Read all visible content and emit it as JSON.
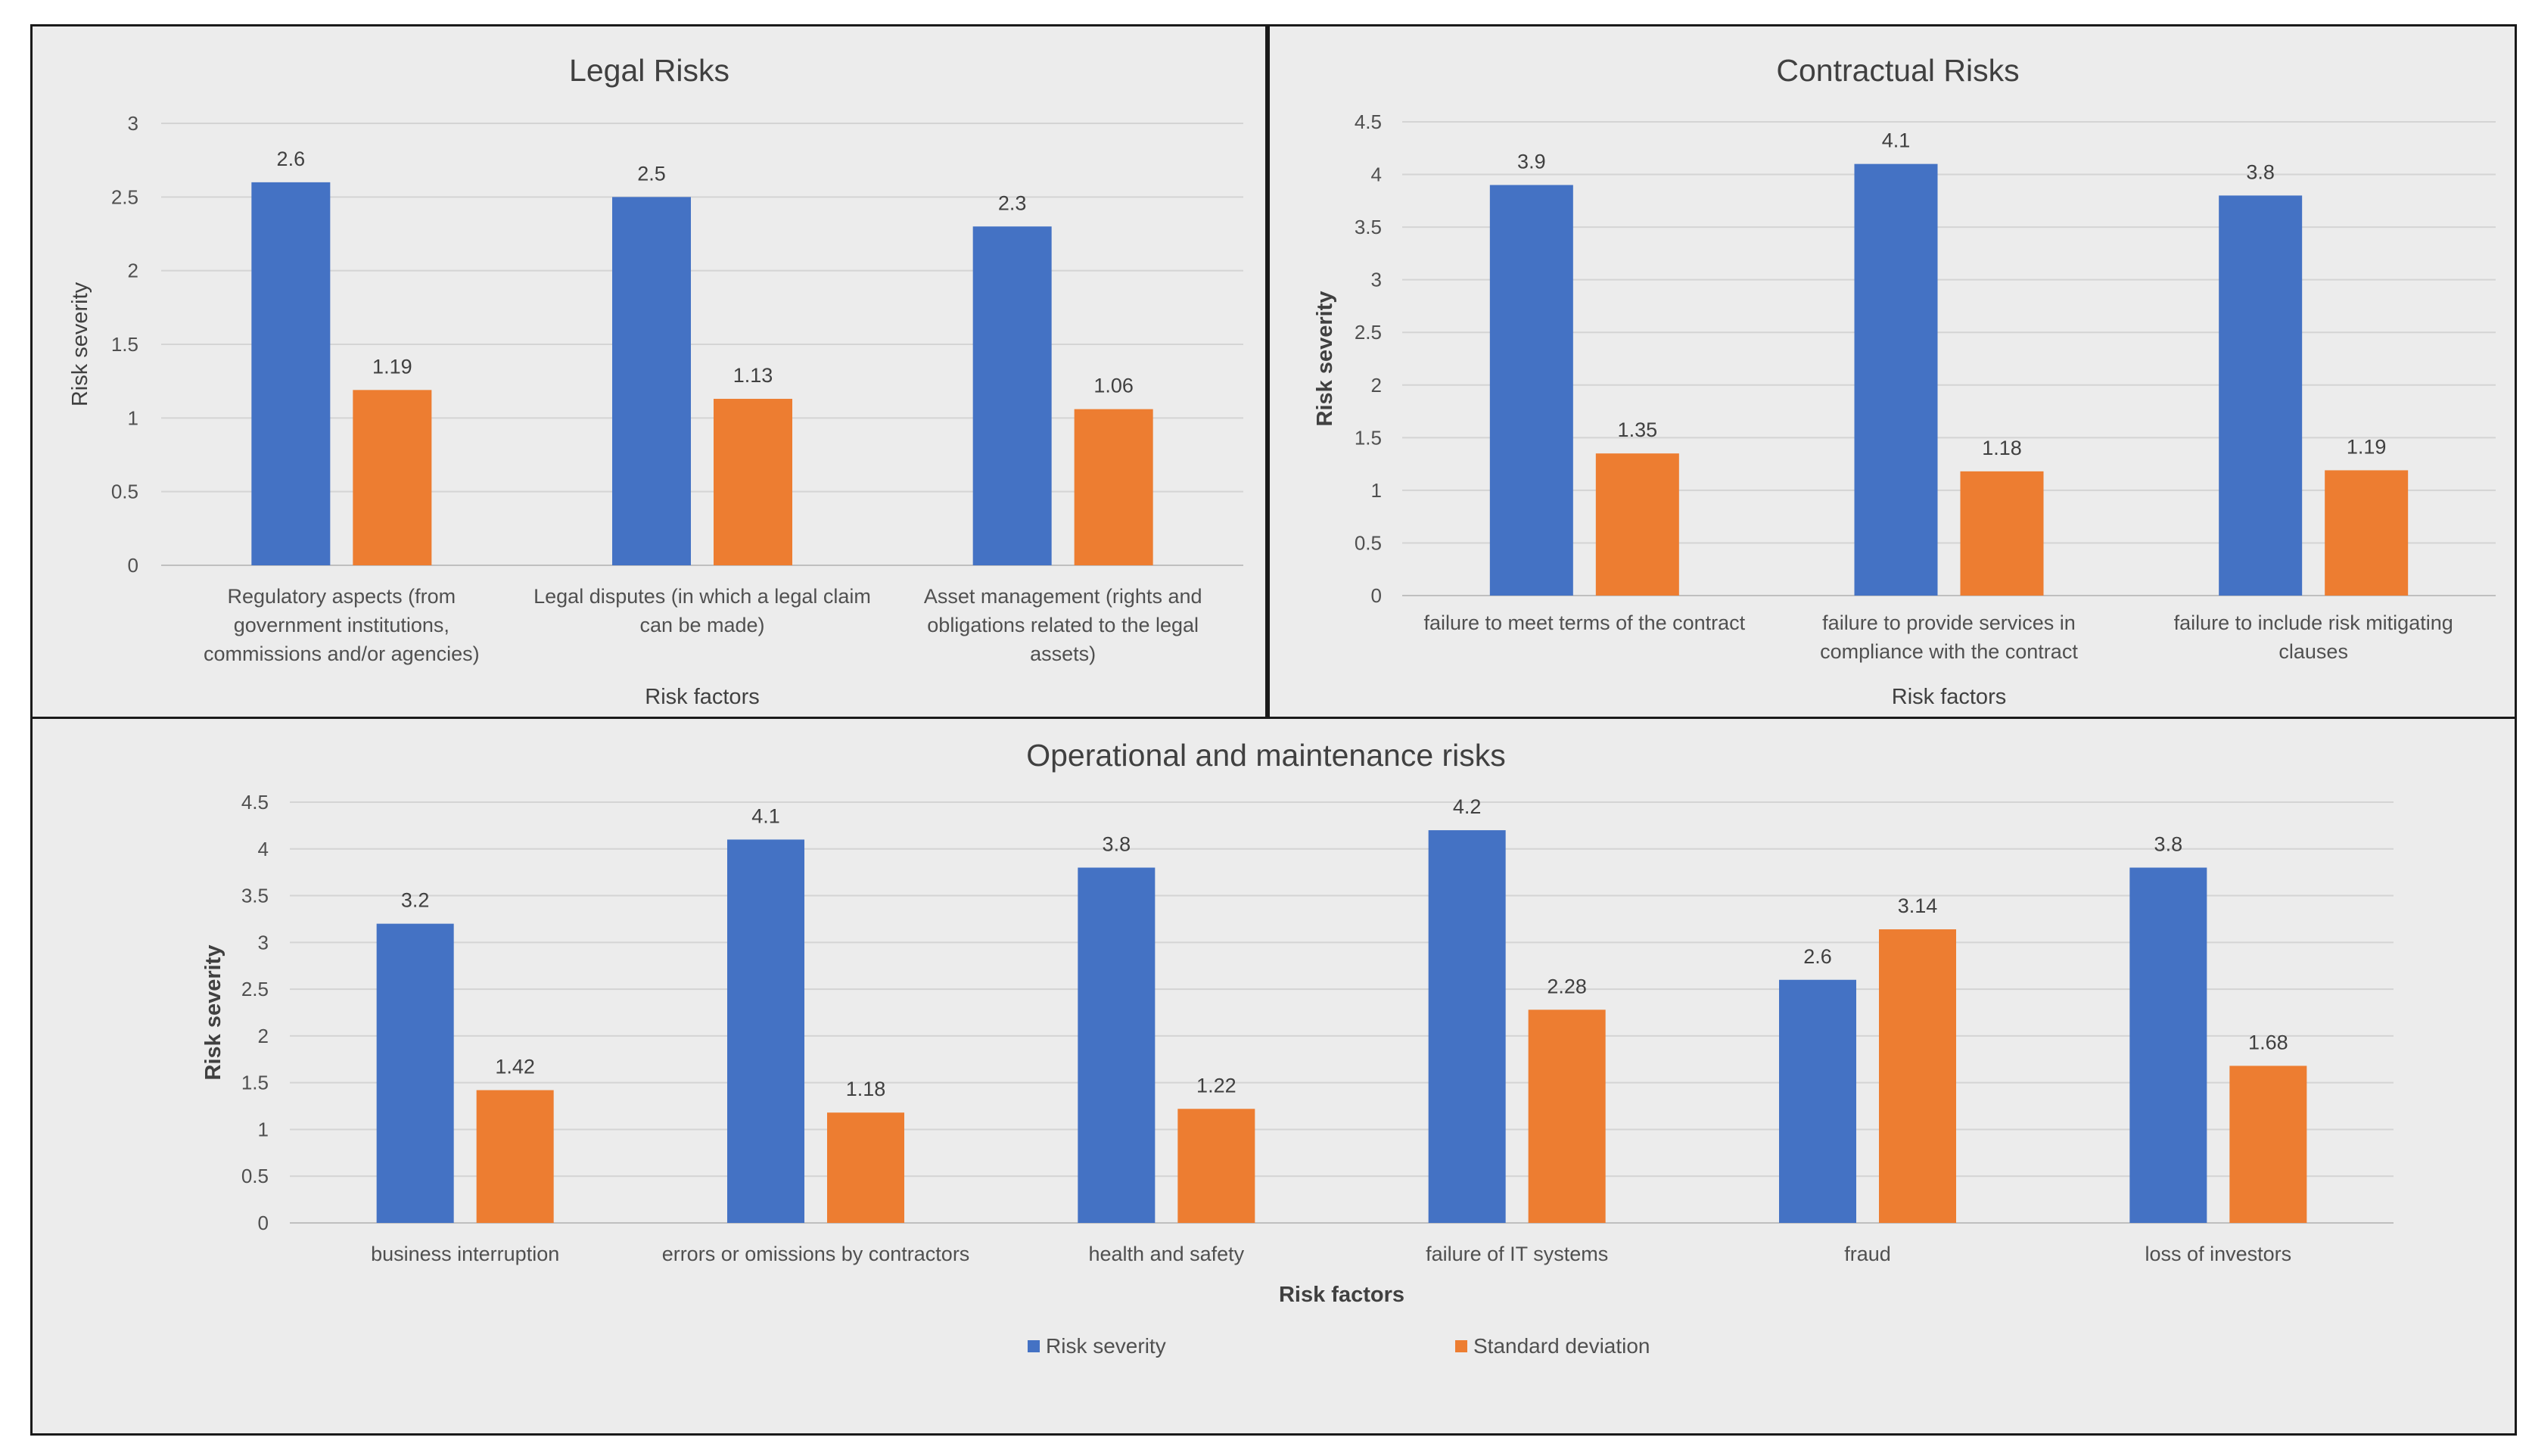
{
  "colors": {
    "severity": "#4472C4",
    "deviation": "#ED7D31"
  },
  "legend": {
    "severity": "Risk severity",
    "deviation": "Standard deviation"
  },
  "chart_data": [
    {
      "type": "bar",
      "title": "Legal Risks",
      "xlabel": "Risk factors",
      "ylabel": "Risk severity",
      "ylim": [
        0,
        3
      ],
      "ticks": [
        "0",
        "0.5",
        "1",
        "1.5",
        "2",
        "2.5",
        "3"
      ],
      "categories": [
        [
          "Regulatory aspects (from",
          "government institutions,",
          "commissions and/or agencies)"
        ],
        [
          "Legal disputes (in which a legal claim",
          "can be made)"
        ],
        [
          "Asset management (rights and",
          "obligations related to the legal",
          "assets)"
        ]
      ],
      "series": [
        {
          "name": "Risk severity",
          "values": [
            2.6,
            2.5,
            2.3
          ],
          "labels": [
            "2.6",
            "2.5",
            "2.3"
          ]
        },
        {
          "name": "Standard deviation",
          "values": [
            1.19,
            1.13,
            1.06
          ],
          "labels": [
            "1.19",
            "1.13",
            "1.06"
          ]
        }
      ]
    },
    {
      "type": "bar",
      "title": "Contractual Risks",
      "xlabel": "Risk factors",
      "ylabel": "Risk severity",
      "ylim": [
        0,
        4.5
      ],
      "ticks": [
        "0",
        "0.5",
        "1",
        "1.5",
        "2",
        "2.5",
        "3",
        "3.5",
        "4",
        "4.5"
      ],
      "categories": [
        [
          "failure to meet terms of the contract"
        ],
        [
          "failure to provide services in",
          "compliance with the contract"
        ],
        [
          "failure to include risk mitigating",
          "clauses"
        ]
      ],
      "series": [
        {
          "name": "Risk severity",
          "values": [
            3.9,
            4.1,
            3.8
          ],
          "labels": [
            "3.9",
            "4.1",
            "3.8"
          ]
        },
        {
          "name": "Standard deviation",
          "values": [
            1.35,
            1.18,
            1.19
          ],
          "labels": [
            "1.35",
            "1.18",
            "1.19"
          ]
        }
      ]
    },
    {
      "type": "bar",
      "title": "Operational and maintenance risks",
      "xlabel": "Risk factors",
      "ylabel": "Risk severity",
      "ylim": [
        0,
        4.5
      ],
      "ticks": [
        "0",
        "0.5",
        "1",
        "1.5",
        "2",
        "2.5",
        "3",
        "3.5",
        "4",
        "4.5"
      ],
      "categories": [
        [
          "business interruption"
        ],
        [
          "errors or omissions by contractors"
        ],
        [
          "health and safety"
        ],
        [
          "failure of IT systems"
        ],
        [
          "fraud"
        ],
        [
          "loss of investors"
        ]
      ],
      "series": [
        {
          "name": "Risk severity",
          "values": [
            3.2,
            4.1,
            3.8,
            4.2,
            2.6,
            3.8
          ],
          "labels": [
            "3.2",
            "4.1",
            "3.8",
            "4.2",
            "2.6",
            "3.8"
          ]
        },
        {
          "name": "Standard deviation",
          "values": [
            1.42,
            1.18,
            1.22,
            2.28,
            3.14,
            1.68
          ],
          "labels": [
            "1.42",
            "1.18",
            "1.22",
            "2.28",
            "3.14",
            "1.68"
          ]
        }
      ]
    }
  ]
}
